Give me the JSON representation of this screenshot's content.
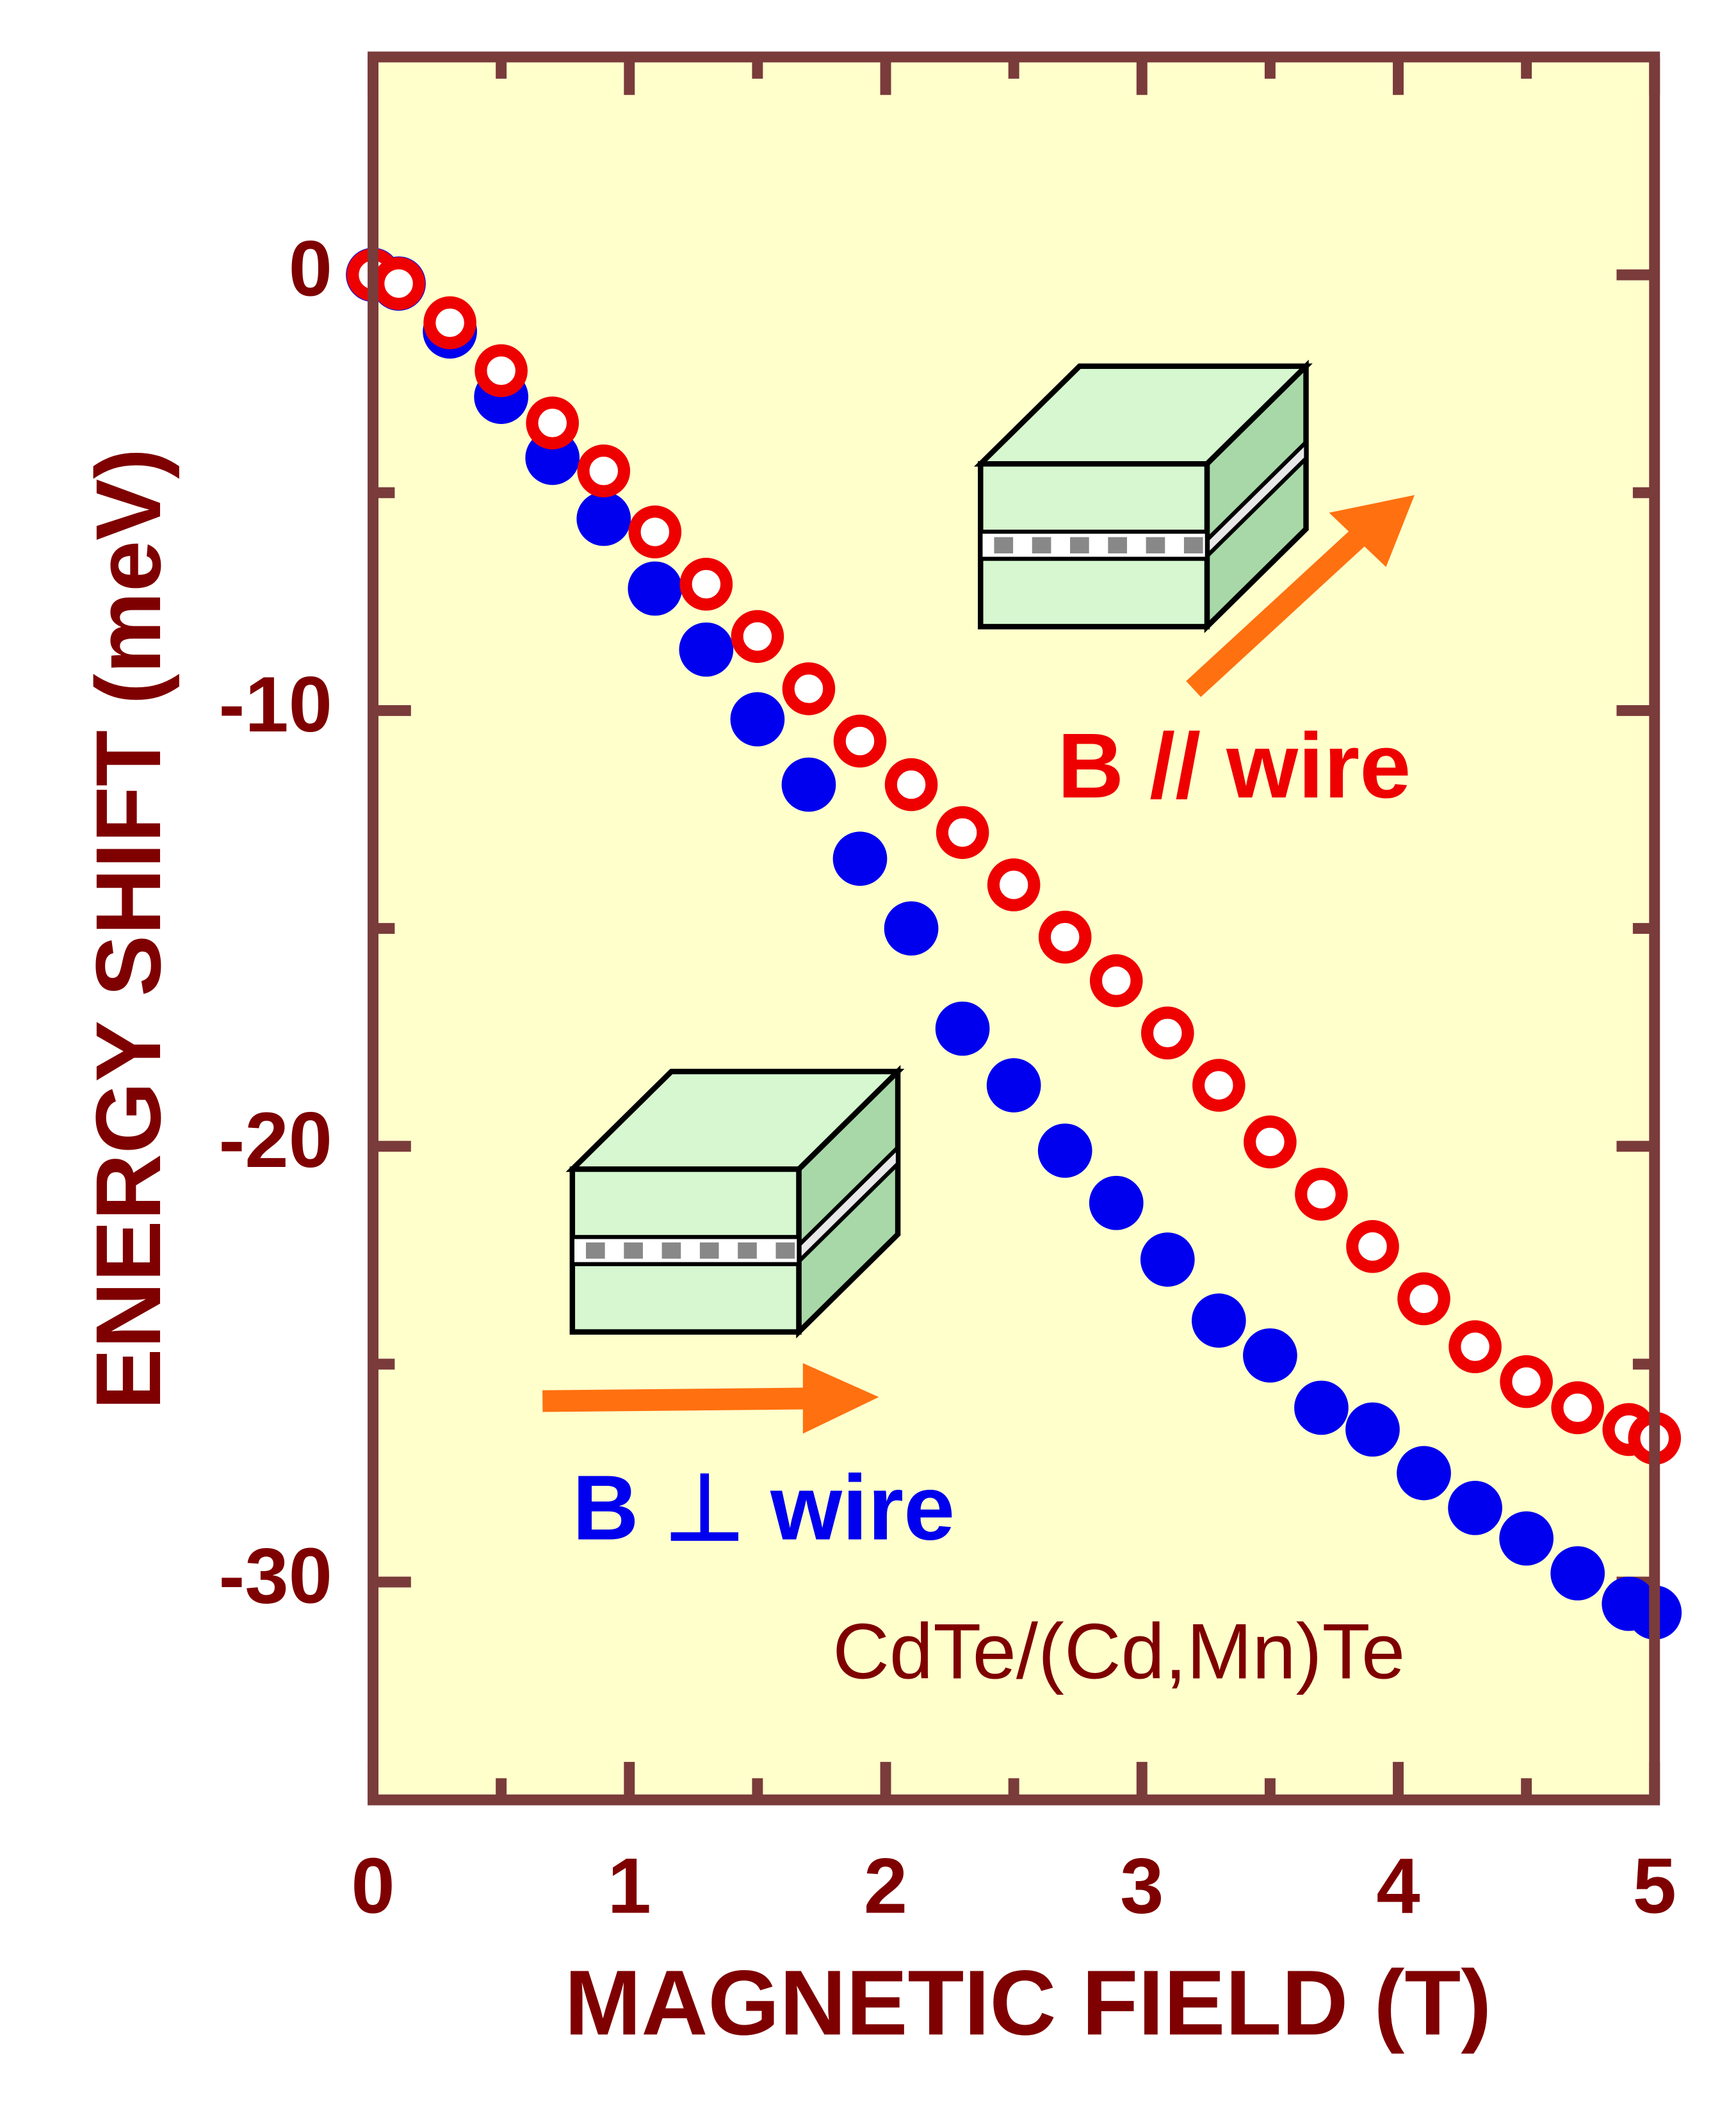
{
  "chart_data": {
    "type": "scatter",
    "x_label": "MAGNETIC FIELD (T)",
    "y_label": "ENERGY SHIFT (meV)",
    "annotation": "CdTe/(Cd,Mn)Te",
    "xlim": [
      0,
      5
    ],
    "ylim": [
      -35,
      5
    ],
    "xticks": [
      0,
      1,
      2,
      3,
      4,
      5
    ],
    "yticks": [
      -30,
      -20,
      -10,
      0
    ],
    "xminorticks": [
      0.5,
      1.5,
      2.5,
      3.5,
      4.5
    ],
    "yminorticks": [
      -25,
      -15,
      -5
    ],
    "x": [
      0,
      0.1,
      0.3,
      0.5,
      0.7,
      0.9,
      1.1,
      1.3,
      1.5,
      1.7,
      1.9,
      2.1,
      2.3,
      2.5,
      2.7,
      2.9,
      3.1,
      3.3,
      3.5,
      3.7,
      3.9,
      4.1,
      4.3,
      4.5,
      4.7,
      4.9,
      5.0
    ],
    "series": [
      {
        "name": "B ⊥ wire",
        "color": "#0000ee",
        "marker": "filled",
        "values": [
          0,
          -0.2,
          -1.3,
          -2.8,
          -4.2,
          -5.6,
          -7.2,
          -8.6,
          -10.2,
          -11.7,
          -13.4,
          -15.0,
          -17.3,
          -18.6,
          -20.1,
          -21.3,
          -22.6,
          -24.0,
          -24.8,
          -26.0,
          -26.5,
          -27.5,
          -28.3,
          -29.0,
          -29.8,
          -30.5,
          -30.7
        ]
      },
      {
        "name": "B // wire",
        "color": "#ee0000",
        "marker": "open",
        "values": [
          0,
          -0.2,
          -1.1,
          -2.2,
          -3.4,
          -4.5,
          -5.9,
          -7.1,
          -8.3,
          -9.5,
          -10.7,
          -11.7,
          -12.8,
          -14.0,
          -15.2,
          -16.2,
          -17.4,
          -18.6,
          -19.9,
          -21.1,
          -22.3,
          -23.5,
          -24.6,
          -25.4,
          -26.0,
          -26.5,
          -26.7
        ]
      }
    ]
  }
}
